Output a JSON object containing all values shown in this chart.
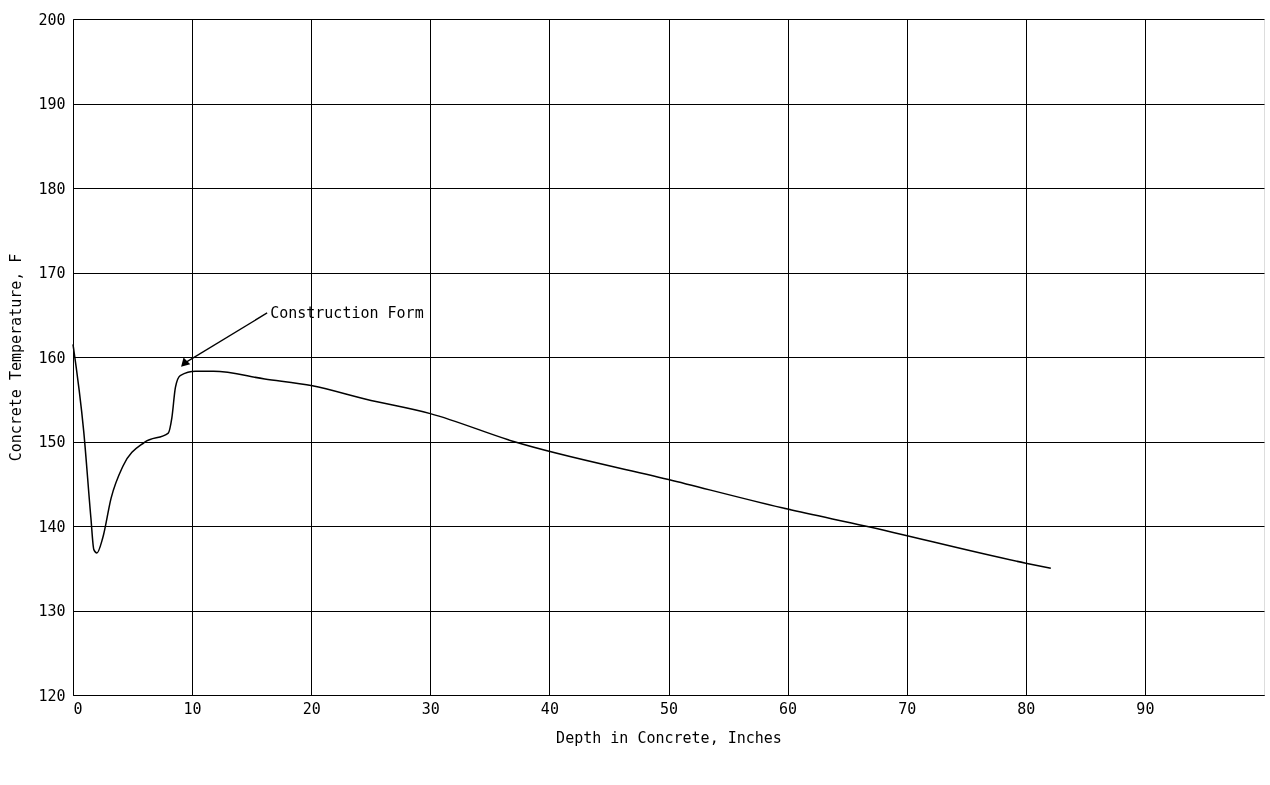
{
  "chart_data": {
    "type": "line",
    "xlabel": "Depth in Concrete, Inches",
    "ylabel": "Concrete Temperature, F",
    "x": [
      0,
      0.9,
      1.5,
      1.75,
      2.0,
      2.5,
      3.2,
      4.2,
      6.0,
      8.0,
      8.3,
      8.6,
      9.0,
      10.3,
      11.8,
      16.1,
      20.1,
      24.6,
      30,
      37,
      50,
      60,
      66.5,
      80,
      82.1
    ],
    "series": [
      {
        "color": "#000000",
        "values": [
          161.5,
          151.2,
          141,
          137.2,
          136.8,
          138.6,
          143.3,
          147.1,
          149.9,
          151.0,
          152.8,
          156.4,
          157.8,
          158.3,
          158.3,
          157.4,
          156.6,
          155.0,
          153.3,
          150,
          145.5,
          142,
          140,
          135.6,
          135.0
        ]
      }
    ],
    "xlim": [
      0,
      100
    ],
    "xticks": [
      0,
      10,
      20,
      30,
      40,
      50,
      60,
      70,
      80,
      90
    ],
    "ylim": [
      120,
      200
    ],
    "yticks": [
      120,
      130,
      140,
      150,
      160,
      170,
      180,
      190,
      200
    ],
    "grid": true,
    "marker": "none",
    "line_style": "solid",
    "annotations": [
      {
        "text": "Construction Form",
        "x": 9.4,
        "y": 159.3
      }
    ]
  }
}
